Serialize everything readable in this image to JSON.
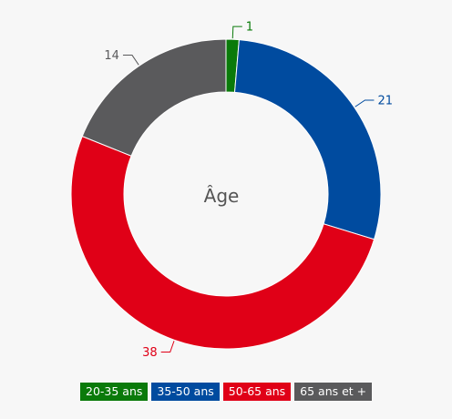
{
  "chart_data": {
    "type": "pie",
    "title": "Âge",
    "donut": true,
    "categories": [
      "20-35 ans",
      "35-50 ans",
      "50-65 ans",
      "65 ans et +"
    ],
    "values": [
      1,
      21,
      38,
      14
    ],
    "colors": [
      "#0a7a0a",
      "#004b9f",
      "#e00017",
      "#5a5a5c"
    ],
    "legend": "bottom"
  }
}
